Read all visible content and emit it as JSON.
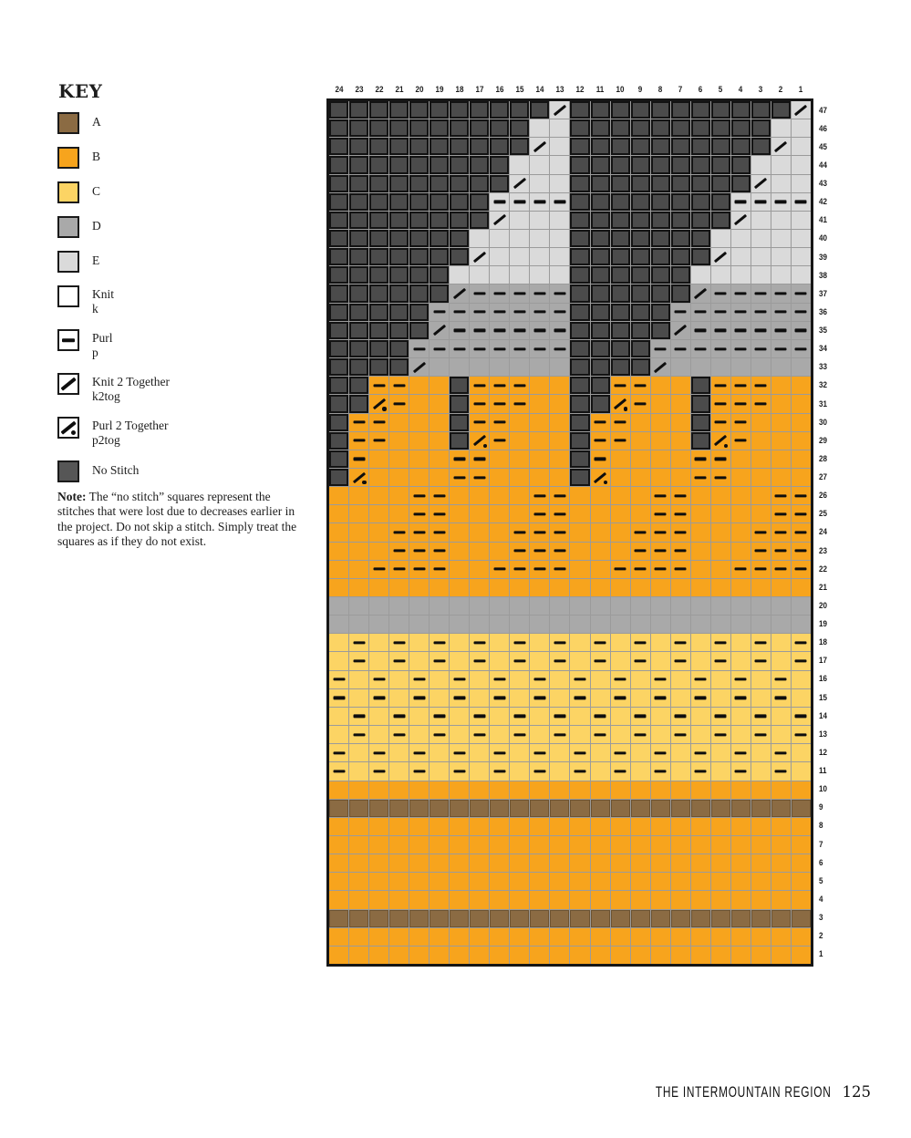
{
  "key": {
    "title": "KEY",
    "items": [
      {
        "id": "A",
        "swatch": "color-A",
        "label": "A"
      },
      {
        "id": "B",
        "swatch": "color-B",
        "label": "B"
      },
      {
        "id": "C",
        "swatch": "color-C",
        "label": "C"
      },
      {
        "id": "D",
        "swatch": "color-D",
        "label": "D"
      },
      {
        "id": "E",
        "swatch": "color-E",
        "label": "E"
      },
      {
        "id": "knit",
        "swatch": "white",
        "label": "Knit",
        "sub": "k"
      },
      {
        "id": "purl",
        "swatch": "white-dash",
        "label": "Purl",
        "sub": "p"
      },
      {
        "id": "k2tog",
        "swatch": "white-slash",
        "label": "Knit 2 Together",
        "sub": "k2tog"
      },
      {
        "id": "p2tog",
        "swatch": "white-slash-dot",
        "label": "Purl 2 Together",
        "sub": "p2tog"
      },
      {
        "id": "nostitch",
        "swatch": "dark",
        "label": "No Stitch"
      }
    ],
    "note_label": "Note:",
    "note_text": " The “no stitch” squares represent the stitches that were lost due to decreases earlier in the project. Do not skip a stitch. Simply treat the squares as if they do not exist."
  },
  "footer": {
    "section_title": "THE INTERMOUNTAIN REGION",
    "page_number": "125"
  },
  "colors": {
    "A": "#8b6b43",
    "B": "#f7a41d",
    "C": "#fcd464",
    "D": "#a9a9a9",
    "E": "#dadada",
    "no_stitch_fill": "#4b4b4b",
    "no_stitch_border": "#131313",
    "grid_line": "#9b9b9b",
    "chart_border": "#161616",
    "symbol": "#0e0e0e"
  },
  "chart_data": {
    "type": "heatmap",
    "title": "Colorwork knitting chart, 24 stitches wide by 47 rows tall; left half (cols 24-13) and right half (cols 12-1) are identical",
    "column_labels": [
      24,
      23,
      22,
      21,
      20,
      19,
      18,
      17,
      16,
      15,
      14,
      13,
      12,
      11,
      10,
      9,
      8,
      7,
      6,
      5,
      4,
      3,
      2,
      1
    ],
    "row_labels": [
      47,
      46,
      45,
      44,
      43,
      42,
      41,
      40,
      39,
      38,
      37,
      36,
      35,
      34,
      33,
      32,
      31,
      30,
      29,
      28,
      27,
      26,
      25,
      24,
      23,
      22,
      21,
      20,
      19,
      18,
      17,
      16,
      15,
      14,
      13,
      12,
      11,
      10,
      9,
      8,
      7,
      6,
      5,
      4,
      3,
      2,
      1
    ],
    "color_legend": {
      "K": "no stitch",
      "A": "color A brown",
      "B": "color B orange",
      "C": "color C yellow",
      "D": "color D gray",
      "E": "color E light gray"
    },
    "symbol_legend": {
      ".": "knit (blank)",
      "-": "purl dash",
      "/": "k2tog slash",
      "p": "p2tog slash with dot"
    },
    "rows": [
      {
        "row": 47,
        "colors": [
          "KKKKKKKKKKKE",
          "KKKKKKKKKKKE"
        ],
        "symbols": [
          ".........../",
          ".........../"
        ]
      },
      {
        "row": 46,
        "colors": [
          "KKKKKKKKKKEE",
          "KKKKKKKKKKEE"
        ],
        "symbols": [
          "............",
          "............"
        ]
      },
      {
        "row": 45,
        "colors": [
          "KKKKKKKKKKEE",
          "KKKKKKKKKKEE"
        ],
        "symbols": [
          "........../.",
          "........../."
        ]
      },
      {
        "row": 44,
        "colors": [
          "KKKKKKKKKEEE",
          "KKKKKKKKKEEE"
        ],
        "symbols": [
          "............",
          "............"
        ]
      },
      {
        "row": 43,
        "colors": [
          "KKKKKKKKKEEE",
          "KKKKKKKKKEEE"
        ],
        "symbols": [
          "........./..",
          "........./.."
        ]
      },
      {
        "row": 42,
        "colors": [
          "KKKKKKKKEEEE",
          "KKKKKKKKEEEE"
        ],
        "symbols": [
          "........----",
          "........----"
        ]
      },
      {
        "row": 41,
        "colors": [
          "KKKKKKKKEEEE",
          "KKKKKKKKEEEE"
        ],
        "symbols": [
          "......../...",
          "......../..."
        ]
      },
      {
        "row": 40,
        "colors": [
          "KKKKKKKEEEEE",
          "KKKKKKKEEEEE"
        ],
        "symbols": [
          "............",
          "............"
        ]
      },
      {
        "row": 39,
        "colors": [
          "KKKKKKKEEEEE",
          "KKKKKKKEEEEE"
        ],
        "symbols": [
          "......./....",
          "......./...."
        ]
      },
      {
        "row": 38,
        "colors": [
          "KKKKKKEEEEEE",
          "KKKKKKEEEEEE"
        ],
        "symbols": [
          "............",
          "............"
        ]
      },
      {
        "row": 37,
        "colors": [
          "KKKKKKDDDDDD",
          "KKKKKKDDDDDD"
        ],
        "symbols": [
          "....../-----",
          "....../-----"
        ]
      },
      {
        "row": 36,
        "colors": [
          "KKKKKDDDDDDD",
          "KKKKKDDDDDDD"
        ],
        "symbols": [
          ".....-------",
          ".....-------"
        ]
      },
      {
        "row": 35,
        "colors": [
          "KKKKKDDDDDDD",
          "KKKKKDDDDDDD"
        ],
        "symbols": [
          "...../------",
          "...../------"
        ]
      },
      {
        "row": 34,
        "colors": [
          "KKKKDDDDDDDD",
          "KKKKDDDDDDDD"
        ],
        "symbols": [
          "....--------",
          "....--------"
        ]
      },
      {
        "row": 33,
        "colors": [
          "KKKKDDDDDDDD",
          "KKKKDDDDDDDD"
        ],
        "symbols": [
          "..../.......",
          "..../......."
        ]
      },
      {
        "row": 32,
        "colors": [
          "KKBBBBKBBBBB",
          "KKBBBBKBBBBB"
        ],
        "symbols": [
          "..--...---..",
          "..--...---.."
        ]
      },
      {
        "row": 31,
        "colors": [
          "KKBBBBKBBBBB",
          "KKBBBBKBBBBB"
        ],
        "symbols": [
          "..p-...---..",
          "..p-...---.."
        ]
      },
      {
        "row": 30,
        "colors": [
          "KBBBBBKBBBBB",
          "KBBBBBKBBBBB"
        ],
        "symbols": [
          ".--....--...",
          ".--....--..."
        ]
      },
      {
        "row": 29,
        "colors": [
          "KBBBBBKBBBBB",
          "KBBBBBKBBBBB"
        ],
        "symbols": [
          ".--....p-...",
          ".--....p-..."
        ]
      },
      {
        "row": 28,
        "colors": [
          "KBBBBBBBBBBB",
          "KBBBBBBBBBBB"
        ],
        "symbols": [
          ".-....--....",
          ".-....--...."
        ]
      },
      {
        "row": 27,
        "colors": [
          "KBBBBBBBBBBB",
          "KBBBBBBBBBBB"
        ],
        "symbols": [
          ".p....--....",
          ".p....--...."
        ]
      },
      {
        "row": 26,
        "colors": [
          "BBBBBBBBBBBB",
          "BBBBBBBBBBBB"
        ],
        "symbols": [
          "....--....--",
          "....--....--"
        ]
      },
      {
        "row": 25,
        "colors": [
          "BBBBBBBBBBBB",
          "BBBBBBBBBBBB"
        ],
        "symbols": [
          "....--....--",
          "....--....--"
        ]
      },
      {
        "row": 24,
        "colors": [
          "BBBBBBBBBBBB",
          "BBBBBBBBBBBB"
        ],
        "symbols": [
          "...---...---",
          "...---...---"
        ]
      },
      {
        "row": 23,
        "colors": [
          "BBBBBBBBBBBB",
          "BBBBBBBBBBBB"
        ],
        "symbols": [
          "...---...---",
          "...---...---"
        ]
      },
      {
        "row": 22,
        "colors": [
          "BBBBBBBBBBBB",
          "BBBBBBBBBBBB"
        ],
        "symbols": [
          "..----..----",
          "..----..----"
        ]
      },
      {
        "row": 21,
        "colors": [
          "BBBBBBBBBBBB",
          "BBBBBBBBBBBB"
        ],
        "symbols": [
          "............",
          "............"
        ]
      },
      {
        "row": 20,
        "colors": [
          "DDDDDDDDDDDD",
          "DDDDDDDDDDDD"
        ],
        "symbols": [
          "............",
          "............"
        ]
      },
      {
        "row": 19,
        "colors": [
          "DDDDDDDDDDDD",
          "DDDDDDDDDDDD"
        ],
        "symbols": [
          "............",
          "............"
        ]
      },
      {
        "row": 18,
        "colors": [
          "CCCCCCCCCCCC",
          "CCCCCCCCCCCC"
        ],
        "symbols": [
          ".-.-.-.-.-.-",
          ".-.-.-.-.-.-"
        ]
      },
      {
        "row": 17,
        "colors": [
          "CCCCCCCCCCCC",
          "CCCCCCCCCCCC"
        ],
        "symbols": [
          ".-.-.-.-.-.-",
          ".-.-.-.-.-.-"
        ]
      },
      {
        "row": 16,
        "colors": [
          "CCCCCCCCCCCC",
          "CCCCCCCCCCCC"
        ],
        "symbols": [
          "-.-.-.-.-.-.",
          "-.-.-.-.-.-."
        ]
      },
      {
        "row": 15,
        "colors": [
          "CCCCCCCCCCCC",
          "CCCCCCCCCCCC"
        ],
        "symbols": [
          "-.-.-.-.-.-.",
          "-.-.-.-.-.-."
        ]
      },
      {
        "row": 14,
        "colors": [
          "CCCCCCCCCCCC",
          "CCCCCCCCCCCC"
        ],
        "symbols": [
          ".-.-.-.-.-.-",
          ".-.-.-.-.-.-"
        ]
      },
      {
        "row": 13,
        "colors": [
          "CCCCCCCCCCCC",
          "CCCCCCCCCCCC"
        ],
        "symbols": [
          ".-.-.-.-.-.-",
          ".-.-.-.-.-.-"
        ]
      },
      {
        "row": 12,
        "colors": [
          "CCCCCCCCCCCC",
          "CCCCCCCCCCCC"
        ],
        "symbols": [
          "-.-.-.-.-.-.",
          "-.-.-.-.-.-."
        ]
      },
      {
        "row": 11,
        "colors": [
          "CCCCCCCCCCCC",
          "CCCCCCCCCCCC"
        ],
        "symbols": [
          "-.-.-.-.-.-.",
          "-.-.-.-.-.-."
        ]
      },
      {
        "row": 10,
        "colors": [
          "BBBBBBBBBBBB",
          "BBBBBBBBBBBB"
        ],
        "symbols": [
          "............",
          "............"
        ]
      },
      {
        "row": 9,
        "colors": [
          "AAAAAAAAAAAA",
          "AAAAAAAAAAAA"
        ],
        "symbols": [
          "............",
          "............"
        ]
      },
      {
        "row": 8,
        "colors": [
          "BBBBBBBBBBBB",
          "BBBBBBBBBBBB"
        ],
        "symbols": [
          "............",
          "............"
        ]
      },
      {
        "row": 7,
        "colors": [
          "BBBBBBBBBBBB",
          "BBBBBBBBBBBB"
        ],
        "symbols": [
          "............",
          "............"
        ]
      },
      {
        "row": 6,
        "colors": [
          "BBBBBBBBBBBB",
          "BBBBBBBBBBBB"
        ],
        "symbols": [
          "............",
          "............"
        ]
      },
      {
        "row": 5,
        "colors": [
          "BBBBBBBBBBBB",
          "BBBBBBBBBBBB"
        ],
        "symbols": [
          "............",
          "............"
        ]
      },
      {
        "row": 4,
        "colors": [
          "BBBBBBBBBBBB",
          "BBBBBBBBBBBB"
        ],
        "symbols": [
          "............",
          "............"
        ]
      },
      {
        "row": 3,
        "colors": [
          "AAAAAAAAAAAA",
          "AAAAAAAAAAAA"
        ],
        "symbols": [
          "............",
          "............"
        ]
      },
      {
        "row": 2,
        "colors": [
          "BBBBBBBBBBBB",
          "BBBBBBBBBBBB"
        ],
        "symbols": [
          "............",
          "............"
        ]
      },
      {
        "row": 1,
        "colors": [
          "BBBBBBBBBBBB",
          "BBBBBBBBBBBB"
        ],
        "symbols": [
          "............",
          "............"
        ]
      }
    ]
  }
}
